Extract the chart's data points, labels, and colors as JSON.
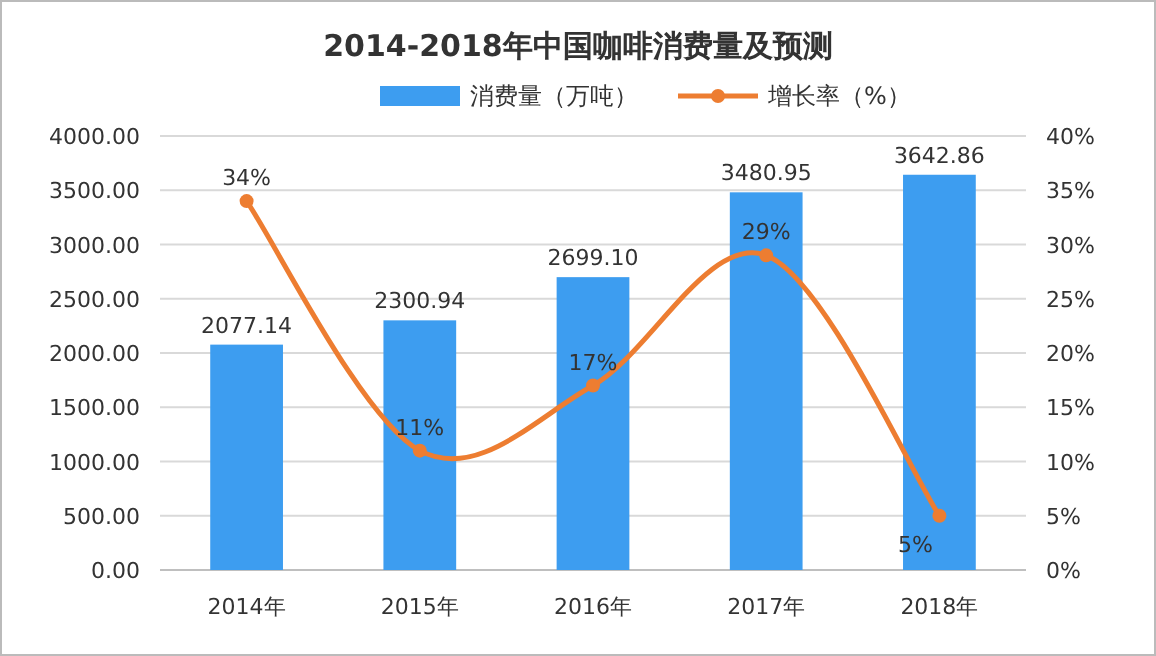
{
  "chart_data": {
    "type": "bar",
    "title": "2014-2018年中国咖啡消费量及预测",
    "categories": [
      "2014年",
      "2015年",
      "2016年",
      "2017年",
      "2018年"
    ],
    "series": [
      {
        "name": "消费量（万吨）",
        "color": "#3d9df0",
        "values": [
          2077.14,
          2300.94,
          2699.1,
          3480.95,
          3642.86
        ],
        "value_labels": [
          "2077.14",
          "2300.94",
          "2699.10",
          "3480.95",
          "3642.86"
        ]
      },
      {
        "name": "增长率（%）",
        "type": "line",
        "axis": "y2",
        "color": "#ed7d31",
        "marker": "circle",
        "values": [
          34,
          11,
          17,
          29,
          5
        ],
        "value_labels": [
          "34%",
          "11%",
          "17%",
          "29%",
          "5%"
        ]
      }
    ],
    "ylim": [
      0,
      4000
    ],
    "yticks": [
      {
        "value": 0,
        "label": "0.00"
      },
      {
        "value": 500,
        "label": "500.00"
      },
      {
        "value": 1000,
        "label": "1000.00"
      },
      {
        "value": 1500,
        "label": "1500.00"
      },
      {
        "value": 2000,
        "label": "2000.00"
      },
      {
        "value": 2500,
        "label": "2500.00"
      },
      {
        "value": 3000,
        "label": "3000.00"
      },
      {
        "value": 3500,
        "label": "3500.00"
      },
      {
        "value": 4000,
        "label": "4000.00"
      }
    ],
    "y2lim": [
      0,
      40
    ],
    "y2ticks": [
      {
        "value": 0,
        "label": "0%"
      },
      {
        "value": 5,
        "label": "5%"
      },
      {
        "value": 10,
        "label": "10%"
      },
      {
        "value": 15,
        "label": "15%"
      },
      {
        "value": 20,
        "label": "20%"
      },
      {
        "value": 25,
        "label": "25%"
      },
      {
        "value": 30,
        "label": "30%"
      },
      {
        "value": 35,
        "label": "35%"
      },
      {
        "value": 40,
        "label": "40%"
      }
    ],
    "grid": "y",
    "legend": "top"
  }
}
